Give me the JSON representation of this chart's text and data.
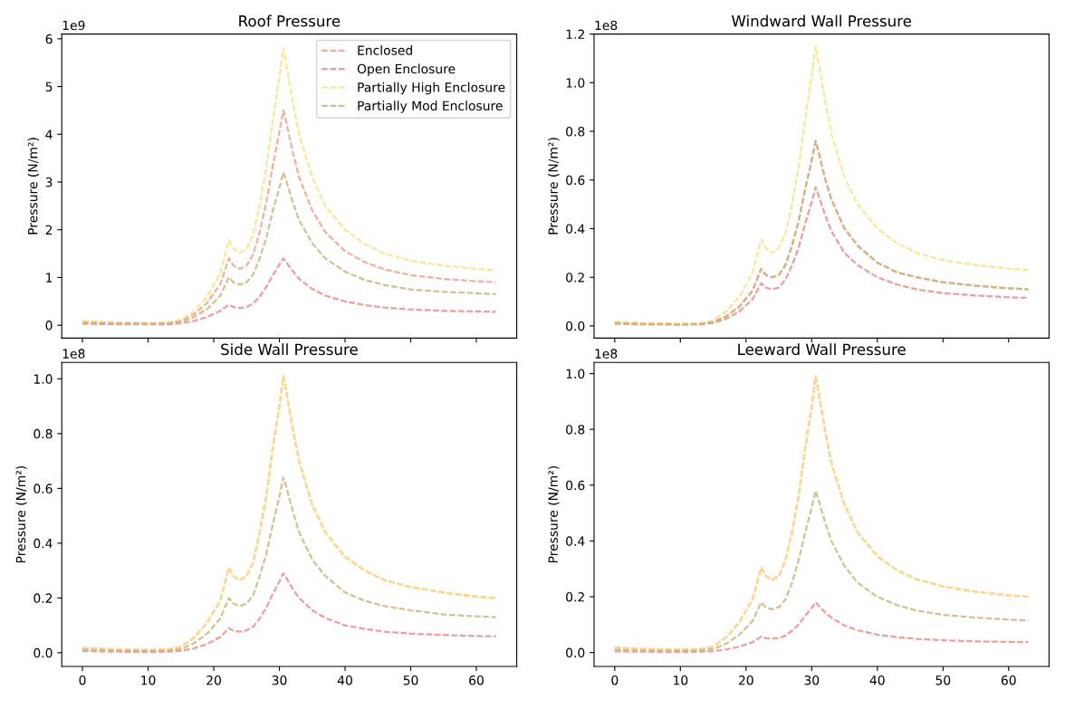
{
  "chart_data": [
    {
      "type": "line",
      "title": "Roof Pressure",
      "ylabel": "Pressure (N/m²)",
      "annotations": [
        "1e9"
      ],
      "line_style": "dashed",
      "legend": "top right",
      "tick_labels": "y",
      "x": [
        0,
        5,
        10,
        13,
        15,
        17,
        19,
        21,
        22.3,
        23,
        24,
        25,
        26,
        27,
        28,
        29,
        30,
        30.6,
        31,
        32,
        33,
        35,
        37,
        40,
        43,
        46,
        50,
        55,
        60,
        63
      ],
      "xlim": [
        -3.15,
        66.15
      ],
      "xticks": [
        0,
        10,
        20,
        30,
        40,
        50,
        60
      ],
      "ylim": [
        -0.27,
        6.1
      ],
      "yticks": [
        0,
        1,
        2,
        3,
        4,
        5,
        6
      ],
      "series": [
        {
          "name": "Enclosed",
          "color": "#f5a08a",
          "values": [
            0.07,
            0.05,
            0.04,
            0.05,
            0.09,
            0.23,
            0.47,
            0.86,
            1.4,
            1.25,
            1.18,
            1.25,
            1.48,
            1.95,
            2.57,
            3.35,
            4.05,
            4.5,
            4.28,
            3.65,
            3.1,
            2.4,
            1.95,
            1.55,
            1.32,
            1.17,
            1.05,
            0.97,
            0.92,
            0.9
          ]
        },
        {
          "name": "Open Enclosure",
          "color": "#f08a8a",
          "values": [
            0.03,
            0.02,
            0.02,
            0.02,
            0.04,
            0.09,
            0.17,
            0.3,
            0.43,
            0.38,
            0.36,
            0.38,
            0.45,
            0.6,
            0.8,
            1.05,
            1.27,
            1.4,
            1.33,
            1.14,
            0.97,
            0.76,
            0.62,
            0.5,
            0.42,
            0.37,
            0.33,
            0.3,
            0.29,
            0.28
          ]
        },
        {
          "name": "Partially High Enclosure",
          "color": "#ffe080",
          "values": [
            0.09,
            0.06,
            0.05,
            0.06,
            0.12,
            0.3,
            0.6,
            1.1,
            1.78,
            1.6,
            1.52,
            1.6,
            1.9,
            2.5,
            3.3,
            4.3,
            5.2,
            5.8,
            5.5,
            4.7,
            4.0,
            3.1,
            2.5,
            2.0,
            1.7,
            1.5,
            1.35,
            1.25,
            1.18,
            1.15
          ]
        },
        {
          "name": "Partially Mod Enclosure",
          "color": "#cdb47c",
          "values": [
            0.05,
            0.04,
            0.03,
            0.04,
            0.07,
            0.17,
            0.34,
            0.62,
            1.0,
            0.9,
            0.85,
            0.9,
            1.06,
            1.4,
            1.83,
            2.4,
            2.88,
            3.2,
            3.05,
            2.6,
            2.2,
            1.72,
            1.4,
            1.12,
            0.95,
            0.84,
            0.75,
            0.7,
            0.67,
            0.65
          ]
        }
      ]
    },
    {
      "type": "line",
      "title": "Windward Wall Pressure",
      "ylabel": "Pressure (N/m²)",
      "annotations": [
        "1e8"
      ],
      "line_style": "dashed",
      "tick_labels": "y",
      "x": [
        0,
        5,
        10,
        13,
        15,
        17,
        19,
        21,
        22.3,
        23,
        24,
        25,
        26,
        27,
        28,
        29,
        30,
        30.6,
        31,
        32,
        33,
        35,
        37,
        40,
        43,
        46,
        50,
        55,
        60,
        63
      ],
      "xlim": [
        -3.15,
        66.15
      ],
      "xticks": [
        0,
        10,
        20,
        30,
        40,
        50,
        60
      ],
      "ylim": [
        -0.05,
        1.2
      ],
      "yticks": [
        {
          "value": 0,
          "label": "0.0"
        },
        {
          "value": 0.2,
          "label": "0.2"
        },
        {
          "value": 0.4,
          "label": "0.4"
        },
        {
          "value": 0.6,
          "label": "0.6"
        },
        {
          "value": 0.8,
          "label": "0.8"
        },
        {
          "value": 1.0,
          "label": "1.0"
        },
        {
          "value": 1.2,
          "label": "1.2"
        }
      ],
      "series": [
        {
          "color": "#f5a08a",
          "values": [
            0.012,
            0.008,
            0.007,
            0.008,
            0.016,
            0.04,
            0.08,
            0.145,
            0.235,
            0.21,
            0.2,
            0.21,
            0.25,
            0.33,
            0.43,
            0.56,
            0.68,
            0.76,
            0.72,
            0.61,
            0.52,
            0.4,
            0.33,
            0.26,
            0.22,
            0.2,
            0.18,
            0.165,
            0.155,
            0.15
          ]
        },
        {
          "color": "#f08a8a",
          "values": [
            0.009,
            0.006,
            0.005,
            0.006,
            0.012,
            0.03,
            0.06,
            0.11,
            0.175,
            0.158,
            0.15,
            0.158,
            0.19,
            0.25,
            0.32,
            0.42,
            0.51,
            0.57,
            0.54,
            0.46,
            0.39,
            0.3,
            0.25,
            0.2,
            0.17,
            0.15,
            0.135,
            0.125,
            0.118,
            0.115
          ]
        },
        {
          "color": "#ffe080",
          "values": [
            0.018,
            0.012,
            0.01,
            0.012,
            0.024,
            0.06,
            0.12,
            0.22,
            0.355,
            0.32,
            0.3,
            0.32,
            0.38,
            0.5,
            0.65,
            0.85,
            1.03,
            1.15,
            1.09,
            0.93,
            0.79,
            0.61,
            0.5,
            0.4,
            0.34,
            0.3,
            0.27,
            0.25,
            0.235,
            0.23
          ]
        },
        {
          "color": "#cdb47c",
          "values": [
            0.012,
            0.008,
            0.007,
            0.008,
            0.016,
            0.04,
            0.08,
            0.145,
            0.235,
            0.21,
            0.2,
            0.21,
            0.25,
            0.33,
            0.43,
            0.56,
            0.68,
            0.76,
            0.72,
            0.61,
            0.52,
            0.4,
            0.33,
            0.26,
            0.22,
            0.2,
            0.18,
            0.165,
            0.155,
            0.15
          ]
        }
      ]
    },
    {
      "type": "line",
      "title": "Side Wall Pressure",
      "ylabel": "Pressure (N/m²)",
      "annotations": [
        "1e8"
      ],
      "line_style": "dashed",
      "x": [
        0,
        5,
        10,
        13,
        15,
        17,
        19,
        21,
        22.3,
        23,
        24,
        25,
        26,
        27,
        28,
        29,
        30,
        30.6,
        31,
        32,
        33,
        35,
        37,
        40,
        43,
        46,
        50,
        55,
        60,
        63
      ],
      "xlim": [
        -3.15,
        66.15
      ],
      "xticks": [
        0,
        10,
        20,
        30,
        40,
        50,
        60
      ],
      "ylim": [
        -0.05,
        1.06
      ],
      "yticks": [
        {
          "value": 0,
          "label": "0.0"
        },
        {
          "value": 0.2,
          "label": "0.2"
        },
        {
          "value": 0.4,
          "label": "0.4"
        },
        {
          "value": 0.6,
          "label": "0.6"
        },
        {
          "value": 0.8,
          "label": "0.8"
        },
        {
          "value": 1.0,
          "label": "1.0"
        }
      ],
      "series": [
        {
          "color": "#f5a08a",
          "values": [
            0.018,
            0.012,
            0.01,
            0.012,
            0.022,
            0.055,
            0.11,
            0.19,
            0.31,
            0.28,
            0.265,
            0.28,
            0.33,
            0.44,
            0.57,
            0.75,
            0.9,
            1.01,
            0.96,
            0.82,
            0.7,
            0.54,
            0.44,
            0.35,
            0.3,
            0.265,
            0.24,
            0.22,
            0.205,
            0.2
          ]
        },
        {
          "color": "#f08a8a",
          "values": [
            0.006,
            0.004,
            0.003,
            0.004,
            0.007,
            0.016,
            0.032,
            0.058,
            0.09,
            0.08,
            0.077,
            0.082,
            0.095,
            0.125,
            0.165,
            0.215,
            0.26,
            0.29,
            0.275,
            0.235,
            0.2,
            0.155,
            0.127,
            0.1,
            0.087,
            0.077,
            0.07,
            0.065,
            0.061,
            0.06
          ]
        },
        {
          "color": "#ffe080",
          "values": [
            0.018,
            0.012,
            0.01,
            0.012,
            0.022,
            0.055,
            0.11,
            0.19,
            0.31,
            0.28,
            0.265,
            0.28,
            0.33,
            0.44,
            0.57,
            0.75,
            0.9,
            1.01,
            0.96,
            0.82,
            0.7,
            0.54,
            0.44,
            0.35,
            0.3,
            0.265,
            0.24,
            0.22,
            0.205,
            0.2
          ]
        },
        {
          "color": "#cdb47c",
          "values": [
            0.012,
            0.008,
            0.007,
            0.008,
            0.014,
            0.035,
            0.07,
            0.125,
            0.2,
            0.18,
            0.17,
            0.18,
            0.21,
            0.28,
            0.36,
            0.47,
            0.57,
            0.64,
            0.61,
            0.52,
            0.44,
            0.34,
            0.28,
            0.22,
            0.19,
            0.17,
            0.155,
            0.14,
            0.133,
            0.13
          ]
        }
      ]
    },
    {
      "type": "line",
      "title": "Leeward Wall Pressure",
      "ylabel": "Pressure (N/m²)",
      "annotations": [
        "1e8"
      ],
      "line_style": "dashed",
      "x": [
        0,
        5,
        10,
        13,
        15,
        17,
        19,
        21,
        22.3,
        23,
        24,
        25,
        26,
        27,
        28,
        29,
        30,
        30.6,
        31,
        32,
        33,
        35,
        37,
        40,
        43,
        46,
        50,
        55,
        60,
        63
      ],
      "xlim": [
        -3.15,
        66.15
      ],
      "xticks": [
        0,
        10,
        20,
        30,
        40,
        50,
        60
      ],
      "ylim": [
        -0.05,
        1.04
      ],
      "yticks": [
        {
          "value": 0,
          "label": "0.0"
        },
        {
          "value": 0.2,
          "label": "0.2"
        },
        {
          "value": 0.4,
          "label": "0.4"
        },
        {
          "value": 0.6,
          "label": "0.6"
        },
        {
          "value": 0.8,
          "label": "0.8"
        },
        {
          "value": 1.0,
          "label": "1.0"
        }
      ],
      "series": [
        {
          "color": "#f5a08a",
          "values": [
            0.018,
            0.012,
            0.01,
            0.012,
            0.022,
            0.055,
            0.11,
            0.19,
            0.305,
            0.275,
            0.26,
            0.275,
            0.33,
            0.43,
            0.56,
            0.73,
            0.88,
            0.99,
            0.94,
            0.8,
            0.68,
            0.53,
            0.43,
            0.345,
            0.295,
            0.262,
            0.237,
            0.218,
            0.205,
            0.2
          ]
        },
        {
          "color": "#f08a8a",
          "values": [
            0.004,
            0.003,
            0.002,
            0.003,
            0.005,
            0.011,
            0.021,
            0.037,
            0.057,
            0.051,
            0.05,
            0.052,
            0.06,
            0.078,
            0.1,
            0.132,
            0.16,
            0.18,
            0.17,
            0.145,
            0.125,
            0.097,
            0.08,
            0.064,
            0.055,
            0.049,
            0.044,
            0.04,
            0.038,
            0.037
          ]
        },
        {
          "color": "#ffe080",
          "values": [
            0.018,
            0.012,
            0.01,
            0.012,
            0.022,
            0.055,
            0.11,
            0.19,
            0.305,
            0.275,
            0.26,
            0.275,
            0.33,
            0.43,
            0.56,
            0.73,
            0.88,
            0.99,
            0.94,
            0.8,
            0.68,
            0.53,
            0.43,
            0.345,
            0.295,
            0.262,
            0.237,
            0.218,
            0.205,
            0.2
          ]
        },
        {
          "color": "#cdb47c",
          "values": [
            0.01,
            0.007,
            0.006,
            0.007,
            0.013,
            0.032,
            0.064,
            0.113,
            0.18,
            0.162,
            0.155,
            0.163,
            0.19,
            0.25,
            0.33,
            0.43,
            0.52,
            0.58,
            0.55,
            0.47,
            0.4,
            0.31,
            0.25,
            0.2,
            0.17,
            0.15,
            0.135,
            0.125,
            0.118,
            0.115
          ]
        }
      ]
    }
  ]
}
